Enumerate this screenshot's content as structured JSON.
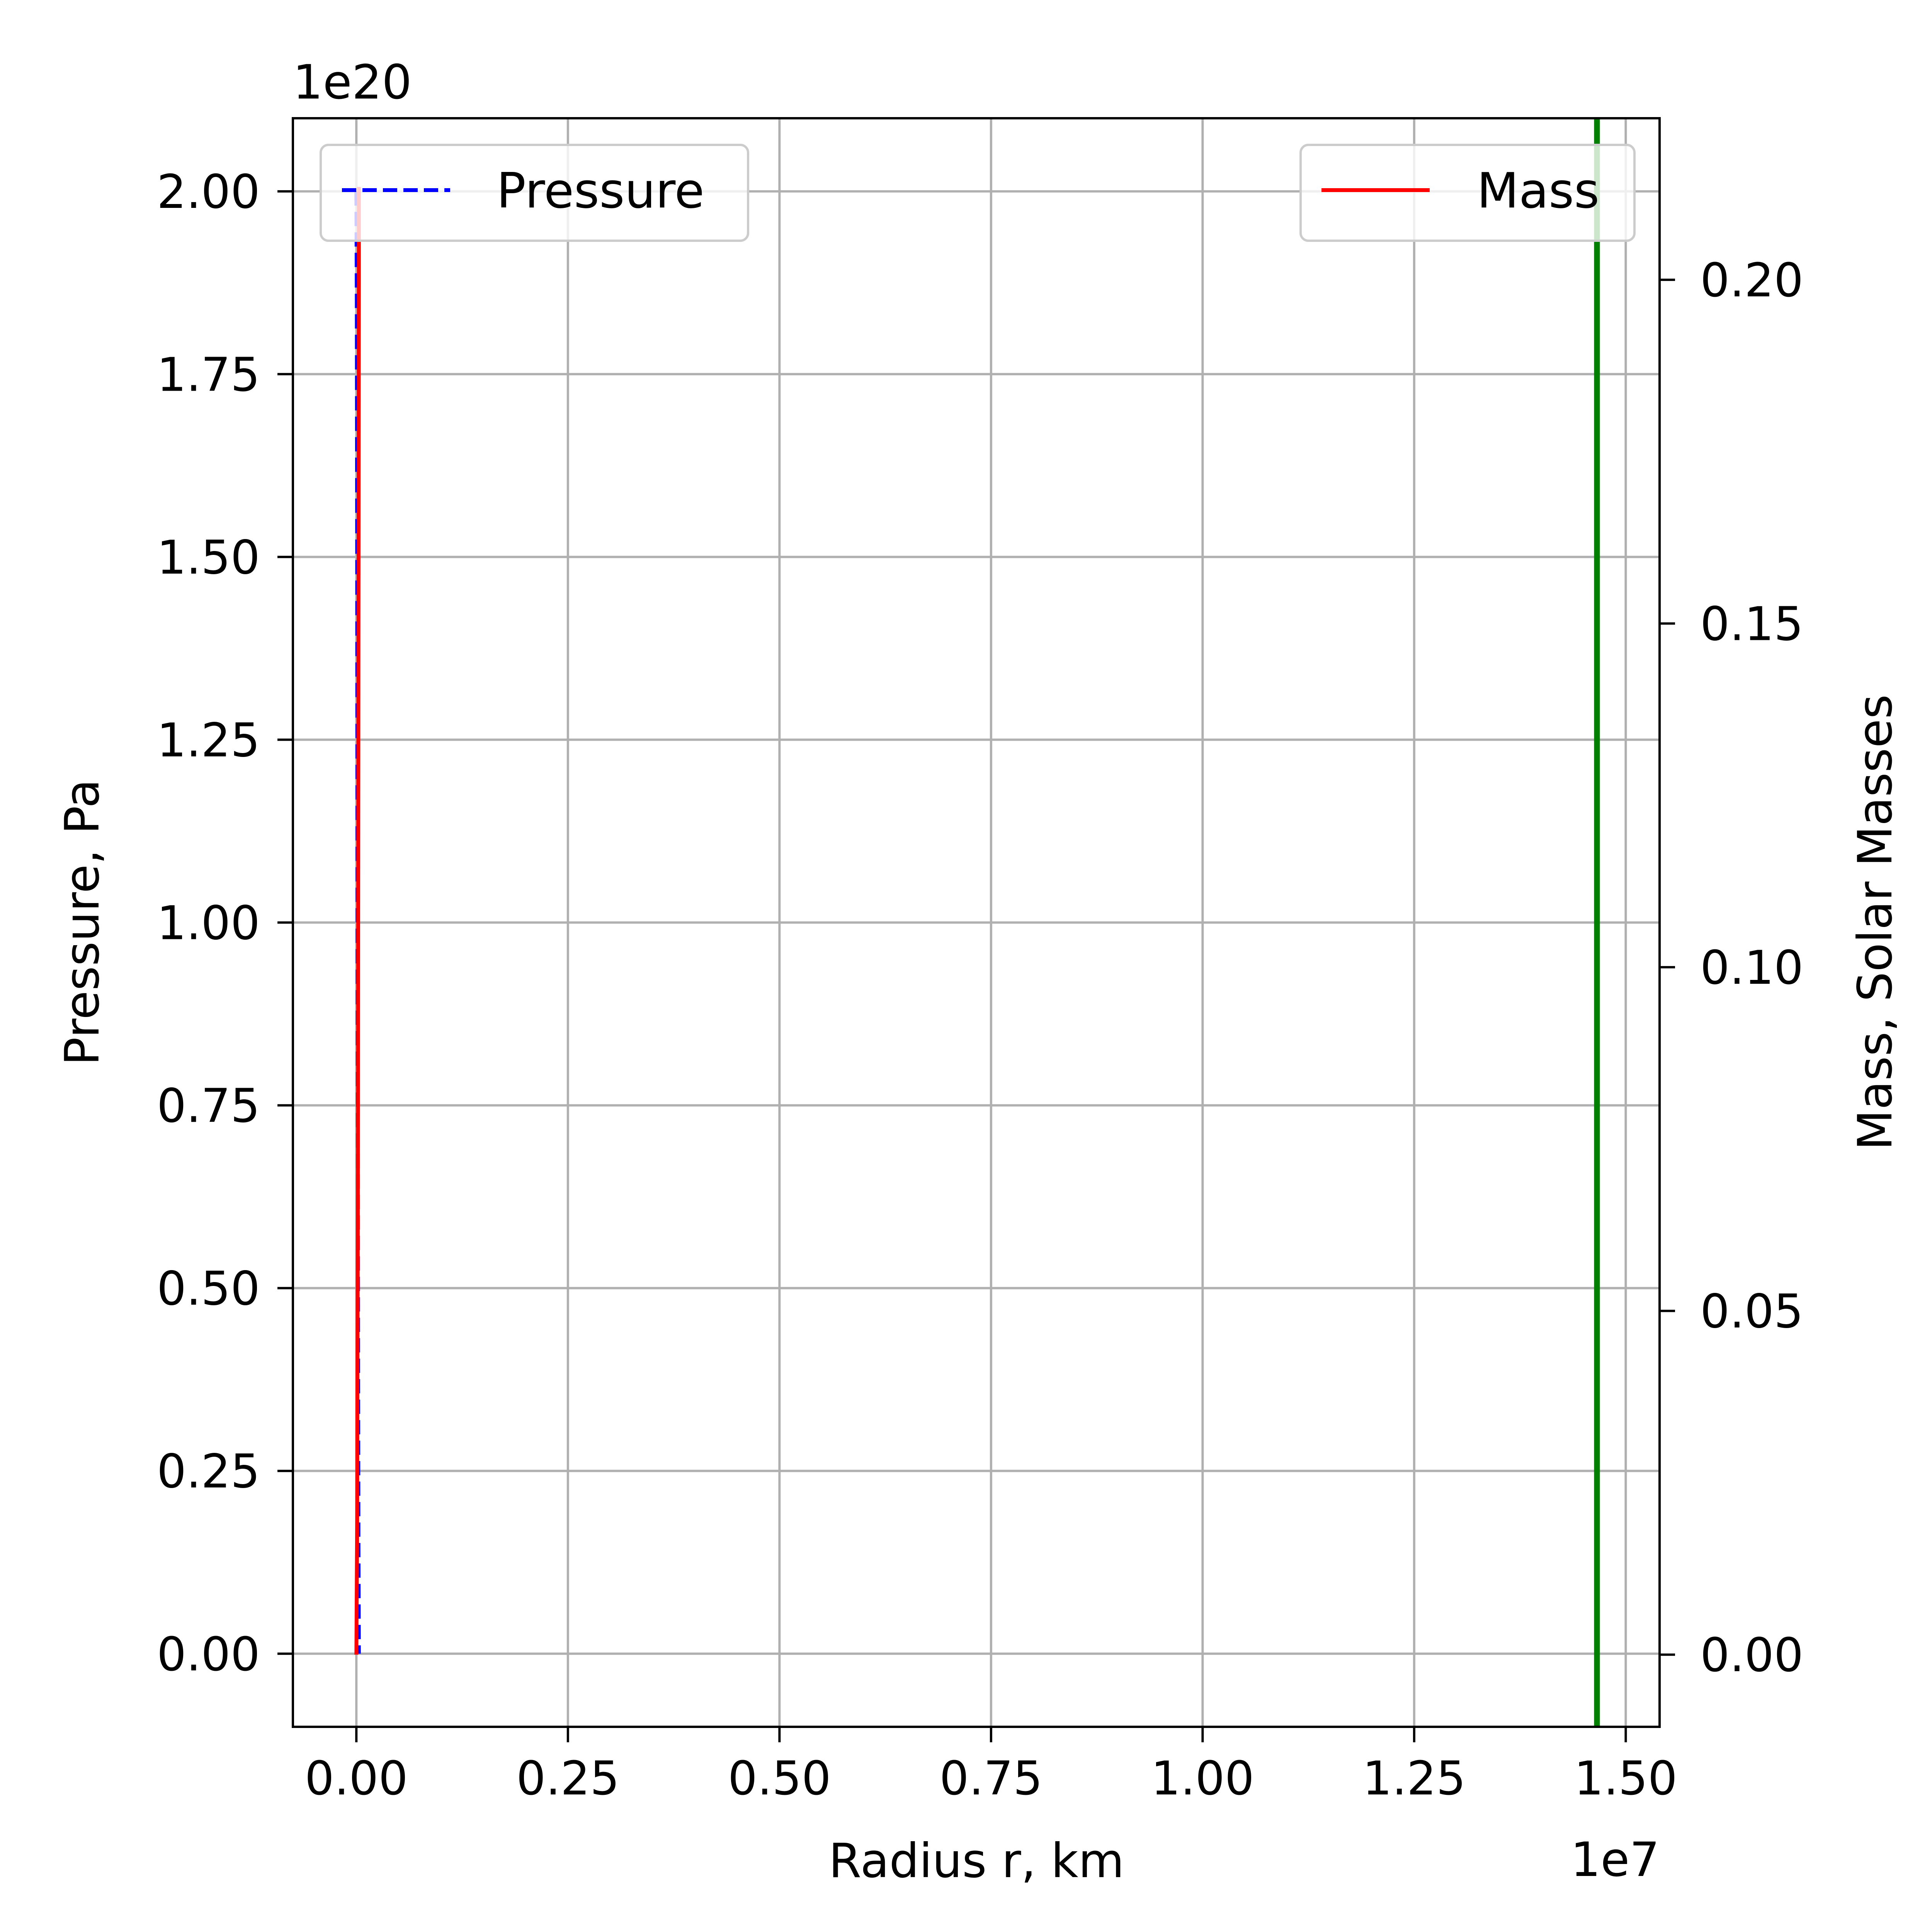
{
  "chart_data": {
    "type": "line",
    "xlabel": "Radius r, km",
    "ylabel": "Pressure, Pa",
    "y2label": "Mass, Solar Masses",
    "x_offset_text": "1e7",
    "y_offset_text": "1e20",
    "xlim": [
      -0.075,
      1.54
    ],
    "ylim": [
      -0.1,
      2.1
    ],
    "y2lim": [
      -0.0105,
      0.2235
    ],
    "x_ticks": [
      0.0,
      0.25,
      0.5,
      0.75,
      1.0,
      1.25,
      1.5
    ],
    "x_tick_labels": [
      "0.00",
      "0.25",
      "0.50",
      "0.75",
      "1.00",
      "1.25",
      "1.50"
    ],
    "y_ticks": [
      0.0,
      0.25,
      0.5,
      0.75,
      1.0,
      1.25,
      1.5,
      1.75,
      2.0
    ],
    "y_tick_labels": [
      "0.00",
      "0.25",
      "0.50",
      "0.75",
      "1.00",
      "1.25",
      "1.50",
      "1.75",
      "2.00"
    ],
    "y2_ticks": [
      0.0,
      0.05,
      0.1,
      0.15,
      0.2
    ],
    "y2_tick_labels": [
      "0.00",
      "0.05",
      "0.10",
      "0.15",
      "0.20"
    ],
    "grid": true,
    "series": [
      {
        "name": "Pressure",
        "axis": "left",
        "style": "dashed",
        "color": "#0000ff",
        "x": [
          0.0,
          0.0005,
          0.001,
          0.0015,
          0.002,
          0.0025,
          0.003
        ],
        "y": [
          2.0,
          1.85,
          1.5,
          1.0,
          0.5,
          0.15,
          0.0
        ]
      },
      {
        "name": "Mass",
        "axis": "right",
        "style": "solid",
        "color": "#ff0000",
        "x": [
          0.0,
          0.001,
          0.002,
          0.0025,
          0.003,
          0.003
        ],
        "y": [
          0.0,
          0.02,
          0.08,
          0.15,
          0.2,
          0.2135
        ]
      }
    ],
    "vline": {
      "x": 1.466,
      "color": "#008000"
    },
    "legends": [
      {
        "placement": "upper-left",
        "entries": [
          "Pressure"
        ]
      },
      {
        "placement": "upper-right",
        "entries": [
          "Mass"
        ]
      }
    ]
  }
}
